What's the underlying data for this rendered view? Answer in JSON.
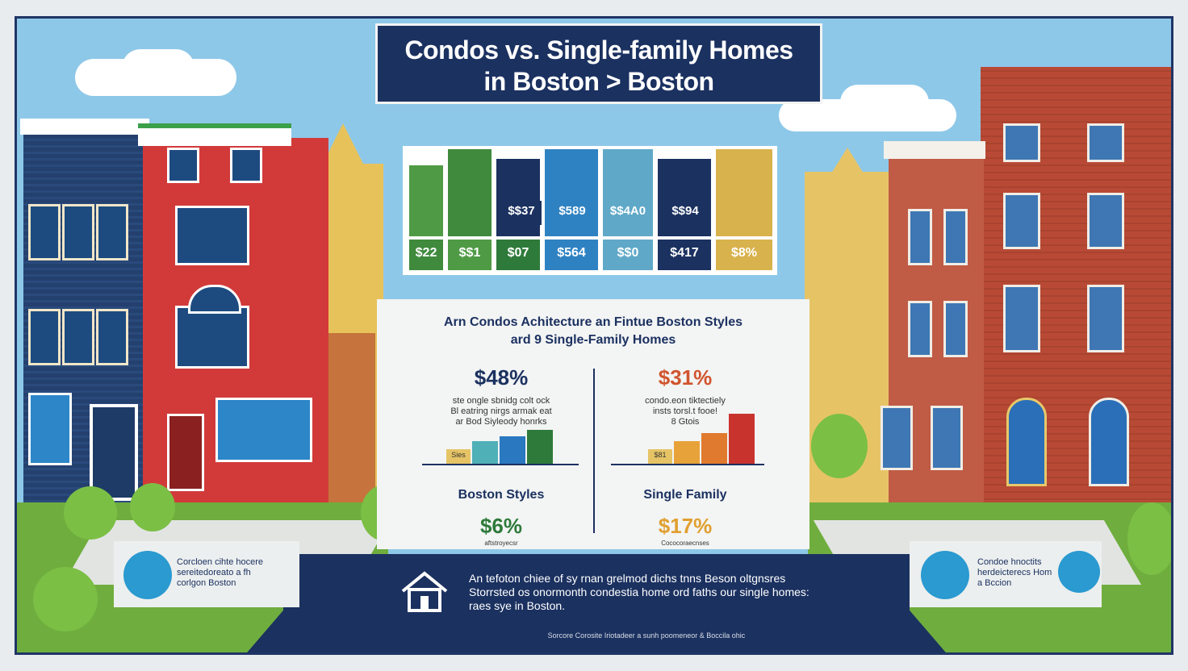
{
  "title": {
    "line1": "Condos vs. Single-family Homes",
    "line2": "in Boston > Boston"
  },
  "price_grid": {
    "top_row": [
      "$$37",
      "$589",
      "$$4A0",
      "$$94"
    ],
    "bottom_row": [
      "$22",
      "$$1",
      "$07",
      "$564",
      "$$0",
      "$417",
      "$8%"
    ]
  },
  "comparison": {
    "heading_line1": "Arn Condos Achitecture an Fintue Boston Styles",
    "heading_line2": "ard 9 Single-Family Homes",
    "left": {
      "stat_top": "$48%",
      "desc": "ste ongle sbnidg colt ock\nBl eatring nirgs armak eat\nar Bod Siyleody honrks",
      "bar_label": "Sies",
      "label": "Boston Styles",
      "stat_bottom": "$6%",
      "stat_bottom_caption": "aftstroyecsr"
    },
    "right": {
      "stat_top": "$31%",
      "desc": "condo.eon tiktectiely\ninsts torsl.t fooe!\n8 Gtois",
      "bar_label": "$81",
      "label": "Single Family",
      "stat_bottom": "$17%",
      "stat_bottom_caption": "Cococoraecnses"
    }
  },
  "footer": {
    "note": "An tefoton chiee of sy rnan grelmod dichs tnns Beson oltgnsres Storrsted os onormonth condestia home ord faths our single homes: raes sye in Boston.",
    "source": "Sorcore Corosite Iriotadeer a sunh poomeneor & Boccila ohic"
  },
  "left_badge": {
    "text": "Corcloen cihte hocere sereitedoreato a fh corlgon Boston"
  },
  "right_badge": {
    "text": "Condoe hnoctits herdeicterecs Hom a Bccion"
  }
}
